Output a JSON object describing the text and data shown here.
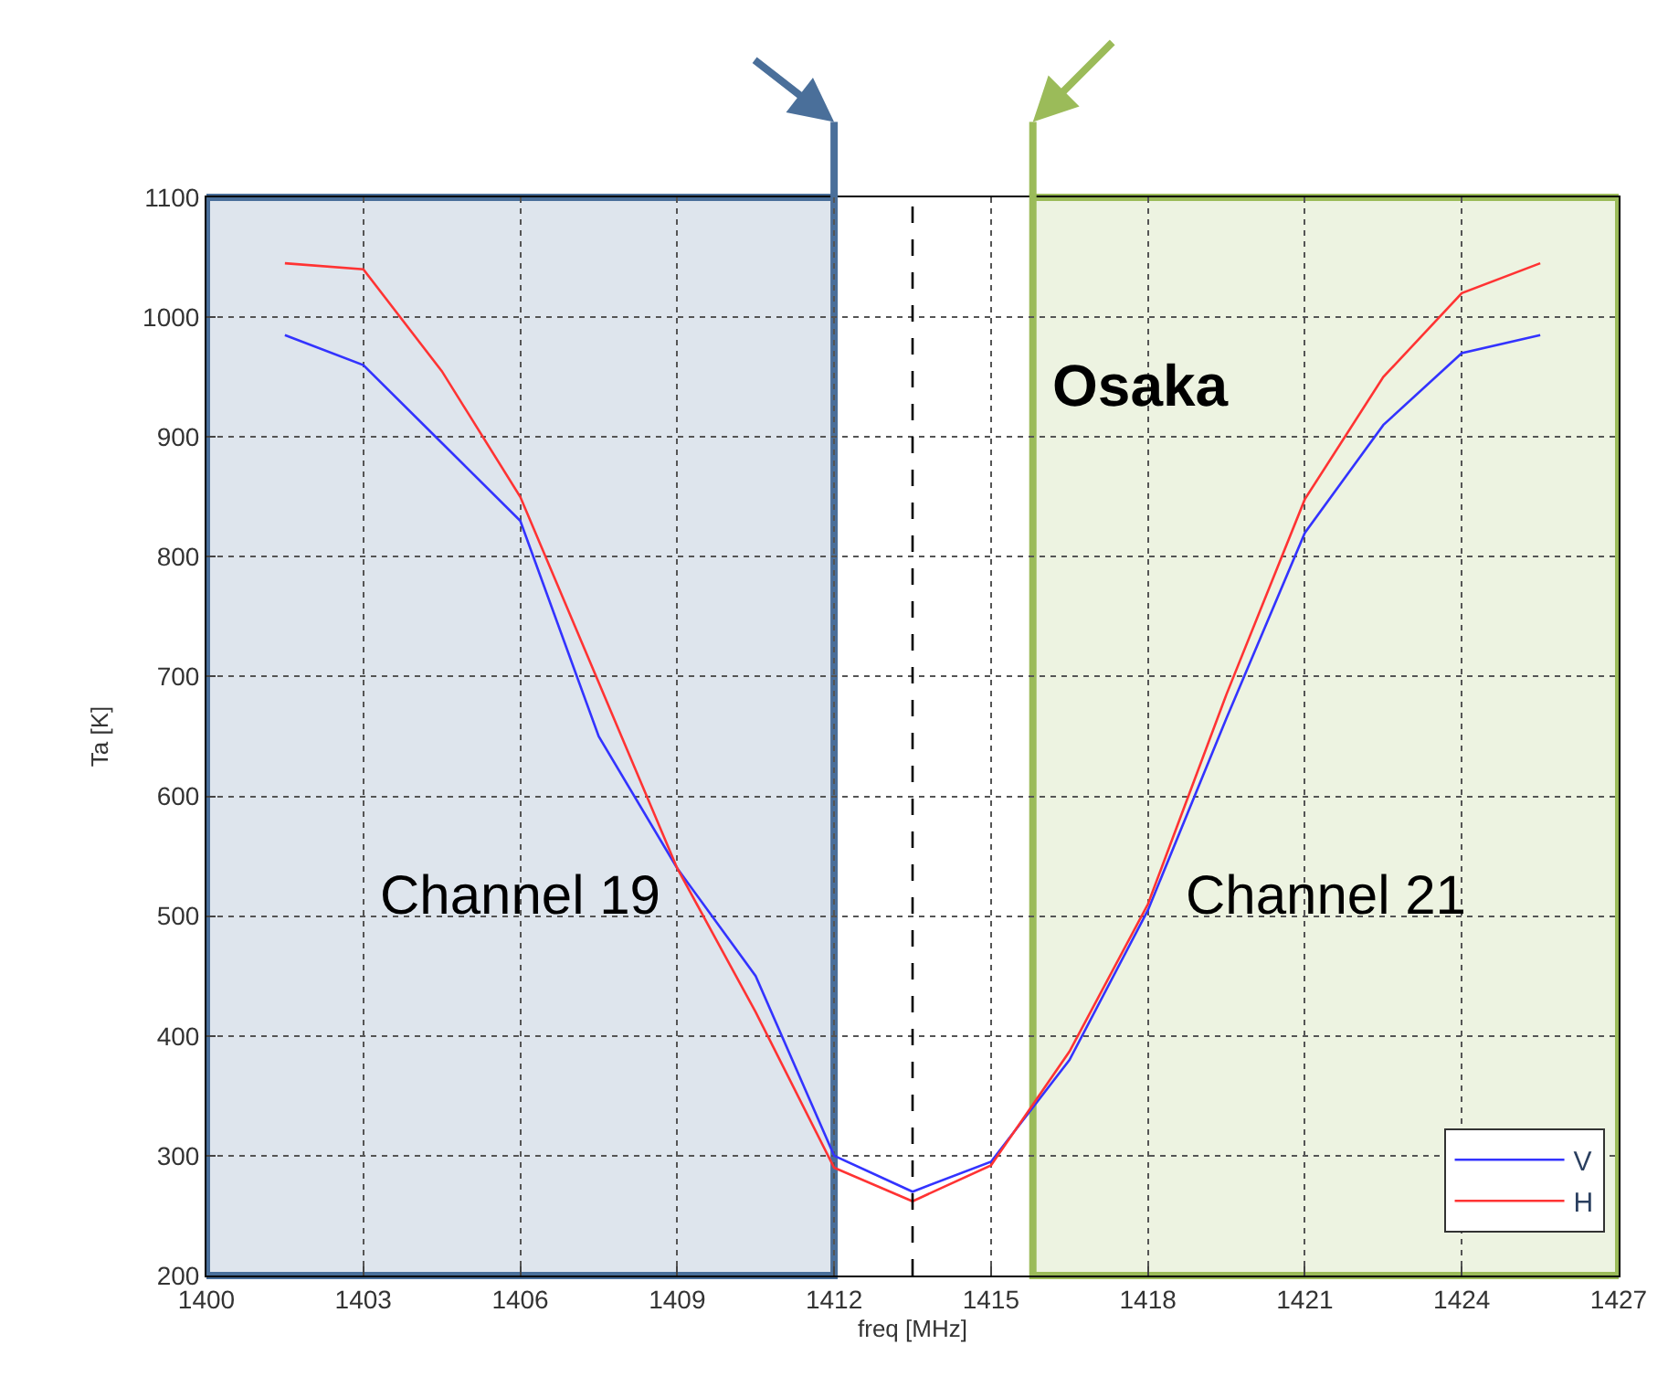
{
  "chart_data": {
    "type": "line",
    "x": [
      1401.5,
      1403,
      1404.5,
      1406,
      1407.5,
      1409,
      1410.5,
      1412,
      1413.5,
      1415,
      1416.5,
      1418,
      1419.5,
      1421,
      1422.5,
      1424,
      1425.5
    ],
    "series": [
      {
        "name": "V",
        "color": "#3333ff",
        "values": [
          985,
          960,
          895,
          830,
          650,
          540,
          450,
          300,
          270,
          295,
          380,
          505,
          665,
          820,
          910,
          970,
          985
        ]
      },
      {
        "name": "H",
        "color": "#ff3333",
        "values": [
          1045,
          1040,
          955,
          850,
          695,
          540,
          420,
          290,
          262,
          292,
          387,
          510,
          685,
          848,
          950,
          1020,
          1045
        ]
      }
    ],
    "xlabel": "freq [MHz]",
    "ylabel": "Ta [K]",
    "xlim": [
      1400,
      1427
    ],
    "xticks": [
      1400,
      1403,
      1406,
      1409,
      1412,
      1415,
      1418,
      1421,
      1424,
      1427
    ],
    "ylim": [
      200,
      1100
    ],
    "yticks": [
      200,
      300,
      400,
      500,
      600,
      700,
      800,
      900,
      1000,
      1100
    ],
    "bands": [
      {
        "axis": "x",
        "from": 1400,
        "to": 1412,
        "label": "Channel 19",
        "color": "#4a6f9a"
      },
      {
        "axis": "x",
        "from": 1415.8,
        "to": 1427,
        "label": "Channel 21",
        "color": "#9bbb59"
      }
    ],
    "ref_lines": [
      {
        "axis": "x",
        "value": 1413.5,
        "color": "#000000",
        "line_style": "dashed"
      }
    ],
    "annotations": [
      "Osaka"
    ],
    "grid": true,
    "legend": "bottom right",
    "marker": "none",
    "line_style": "solid"
  }
}
